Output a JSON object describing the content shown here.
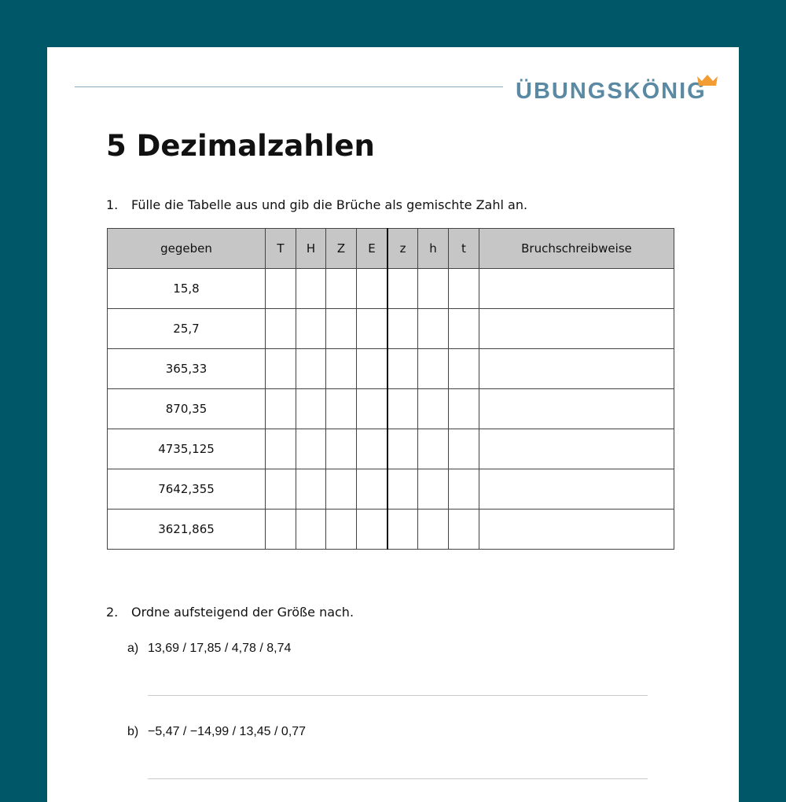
{
  "brand": {
    "logo": "ÜBUNGSKÖNIG",
    "accent": "#f39c33",
    "logo_color": "#5a8aa3",
    "background": "#005767"
  },
  "title": "5 Dezimalzahlen",
  "task1": {
    "number": "1.",
    "text": "Fülle die Tabelle aus und gib die Brüche als gemischte Zahl an.",
    "headers": [
      "gegeben",
      "T",
      "H",
      "Z",
      "E",
      "z",
      "h",
      "t",
      "Bruchschreibweise"
    ],
    "rows": [
      "15,8",
      "25,7",
      "365,33",
      "870,35",
      "4735,125",
      "7642,355",
      "3621,865"
    ]
  },
  "task2": {
    "number": "2.",
    "text": "Ordne aufsteigend der Größe nach.",
    "items": [
      {
        "label": "a)",
        "text": "13,69 / 17,85 / 4,78 / 8,74"
      },
      {
        "label": "b)",
        "text": "−5,47 / −14,99 / 13,45 / 0,77"
      }
    ]
  }
}
